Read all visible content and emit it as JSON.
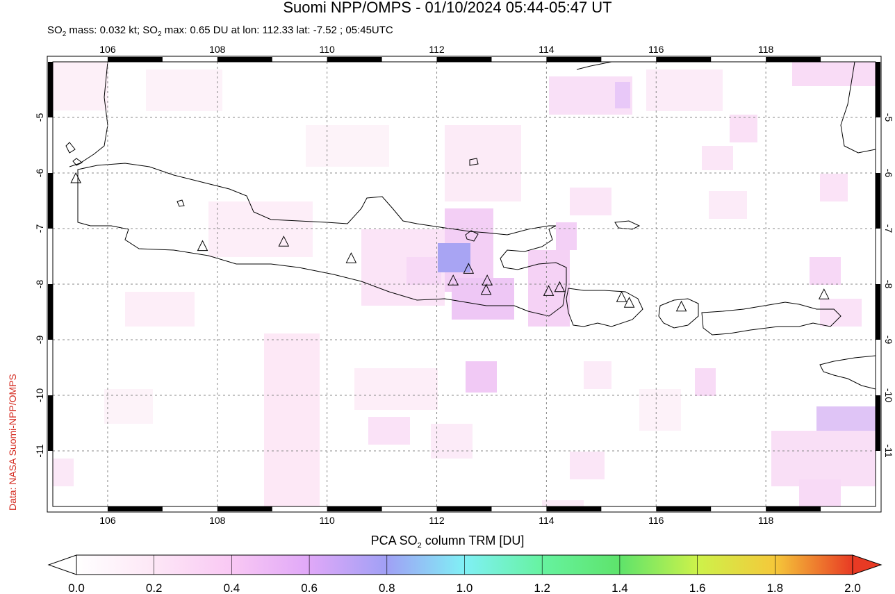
{
  "title": "Suomi NPP/OMPS - 01/10/2024 05:44-05:47 UT",
  "subtitle": {
    "prefix": "SO",
    "sub": "2",
    "mass_text": " mass: 0.032 kt; SO",
    "sub2": "2",
    "rest": " max: 0.65 DU at lon: 112.33 lat: -7.52 ; 05:45UTC"
  },
  "credit": "Data: NASA Suomi-NPP/OMPS",
  "map": {
    "lon_range": [
      105.0,
      120.0
    ],
    "lat_range": [
      -12.0,
      -4.0
    ],
    "lon_ticks": [
      "106",
      "108",
      "110",
      "112",
      "114",
      "116",
      "118"
    ],
    "lat_ticks": [
      "-5",
      "-6",
      "-7",
      "-8",
      "-9",
      "-10",
      "-11"
    ],
    "grid": true,
    "volcano_marker": "triangle-icon",
    "volcanoes_lonlat": [
      [
        105.42,
        -6.1
      ],
      [
        107.73,
        -7.32
      ],
      [
        109.21,
        -7.24
      ],
      [
        110.44,
        -7.54
      ],
      [
        112.3,
        -7.94
      ],
      [
        112.58,
        -7.73
      ],
      [
        112.92,
        -7.94
      ],
      [
        112.9,
        -8.11
      ],
      [
        114.04,
        -8.13
      ],
      [
        114.24,
        -8.06
      ],
      [
        115.37,
        -8.24
      ],
      [
        115.51,
        -8.34
      ],
      [
        116.46,
        -8.41
      ],
      [
        119.06,
        -8.19
      ]
    ],
    "max_point_lonlat": [
      112.33,
      -7.52
    ]
  },
  "colorbar": {
    "title_prefix": "PCA SO",
    "title_sub": "2",
    "title_suffix": " column TRM [DU]",
    "ticks": [
      "0.0",
      "0.2",
      "0.4",
      "0.6",
      "0.8",
      "1.0",
      "1.2",
      "1.4",
      "1.6",
      "1.8",
      "2.0"
    ],
    "colors": [
      "#ffffff",
      "#fde7f6",
      "#f9c8f4",
      "#e0a8f8",
      "#a0a0f5",
      "#8fbff5",
      "#80f2f0",
      "#66f39e",
      "#5ee36b",
      "#cdf24a",
      "#f5e23a",
      "#f5a23a",
      "#e83a24"
    ]
  }
}
